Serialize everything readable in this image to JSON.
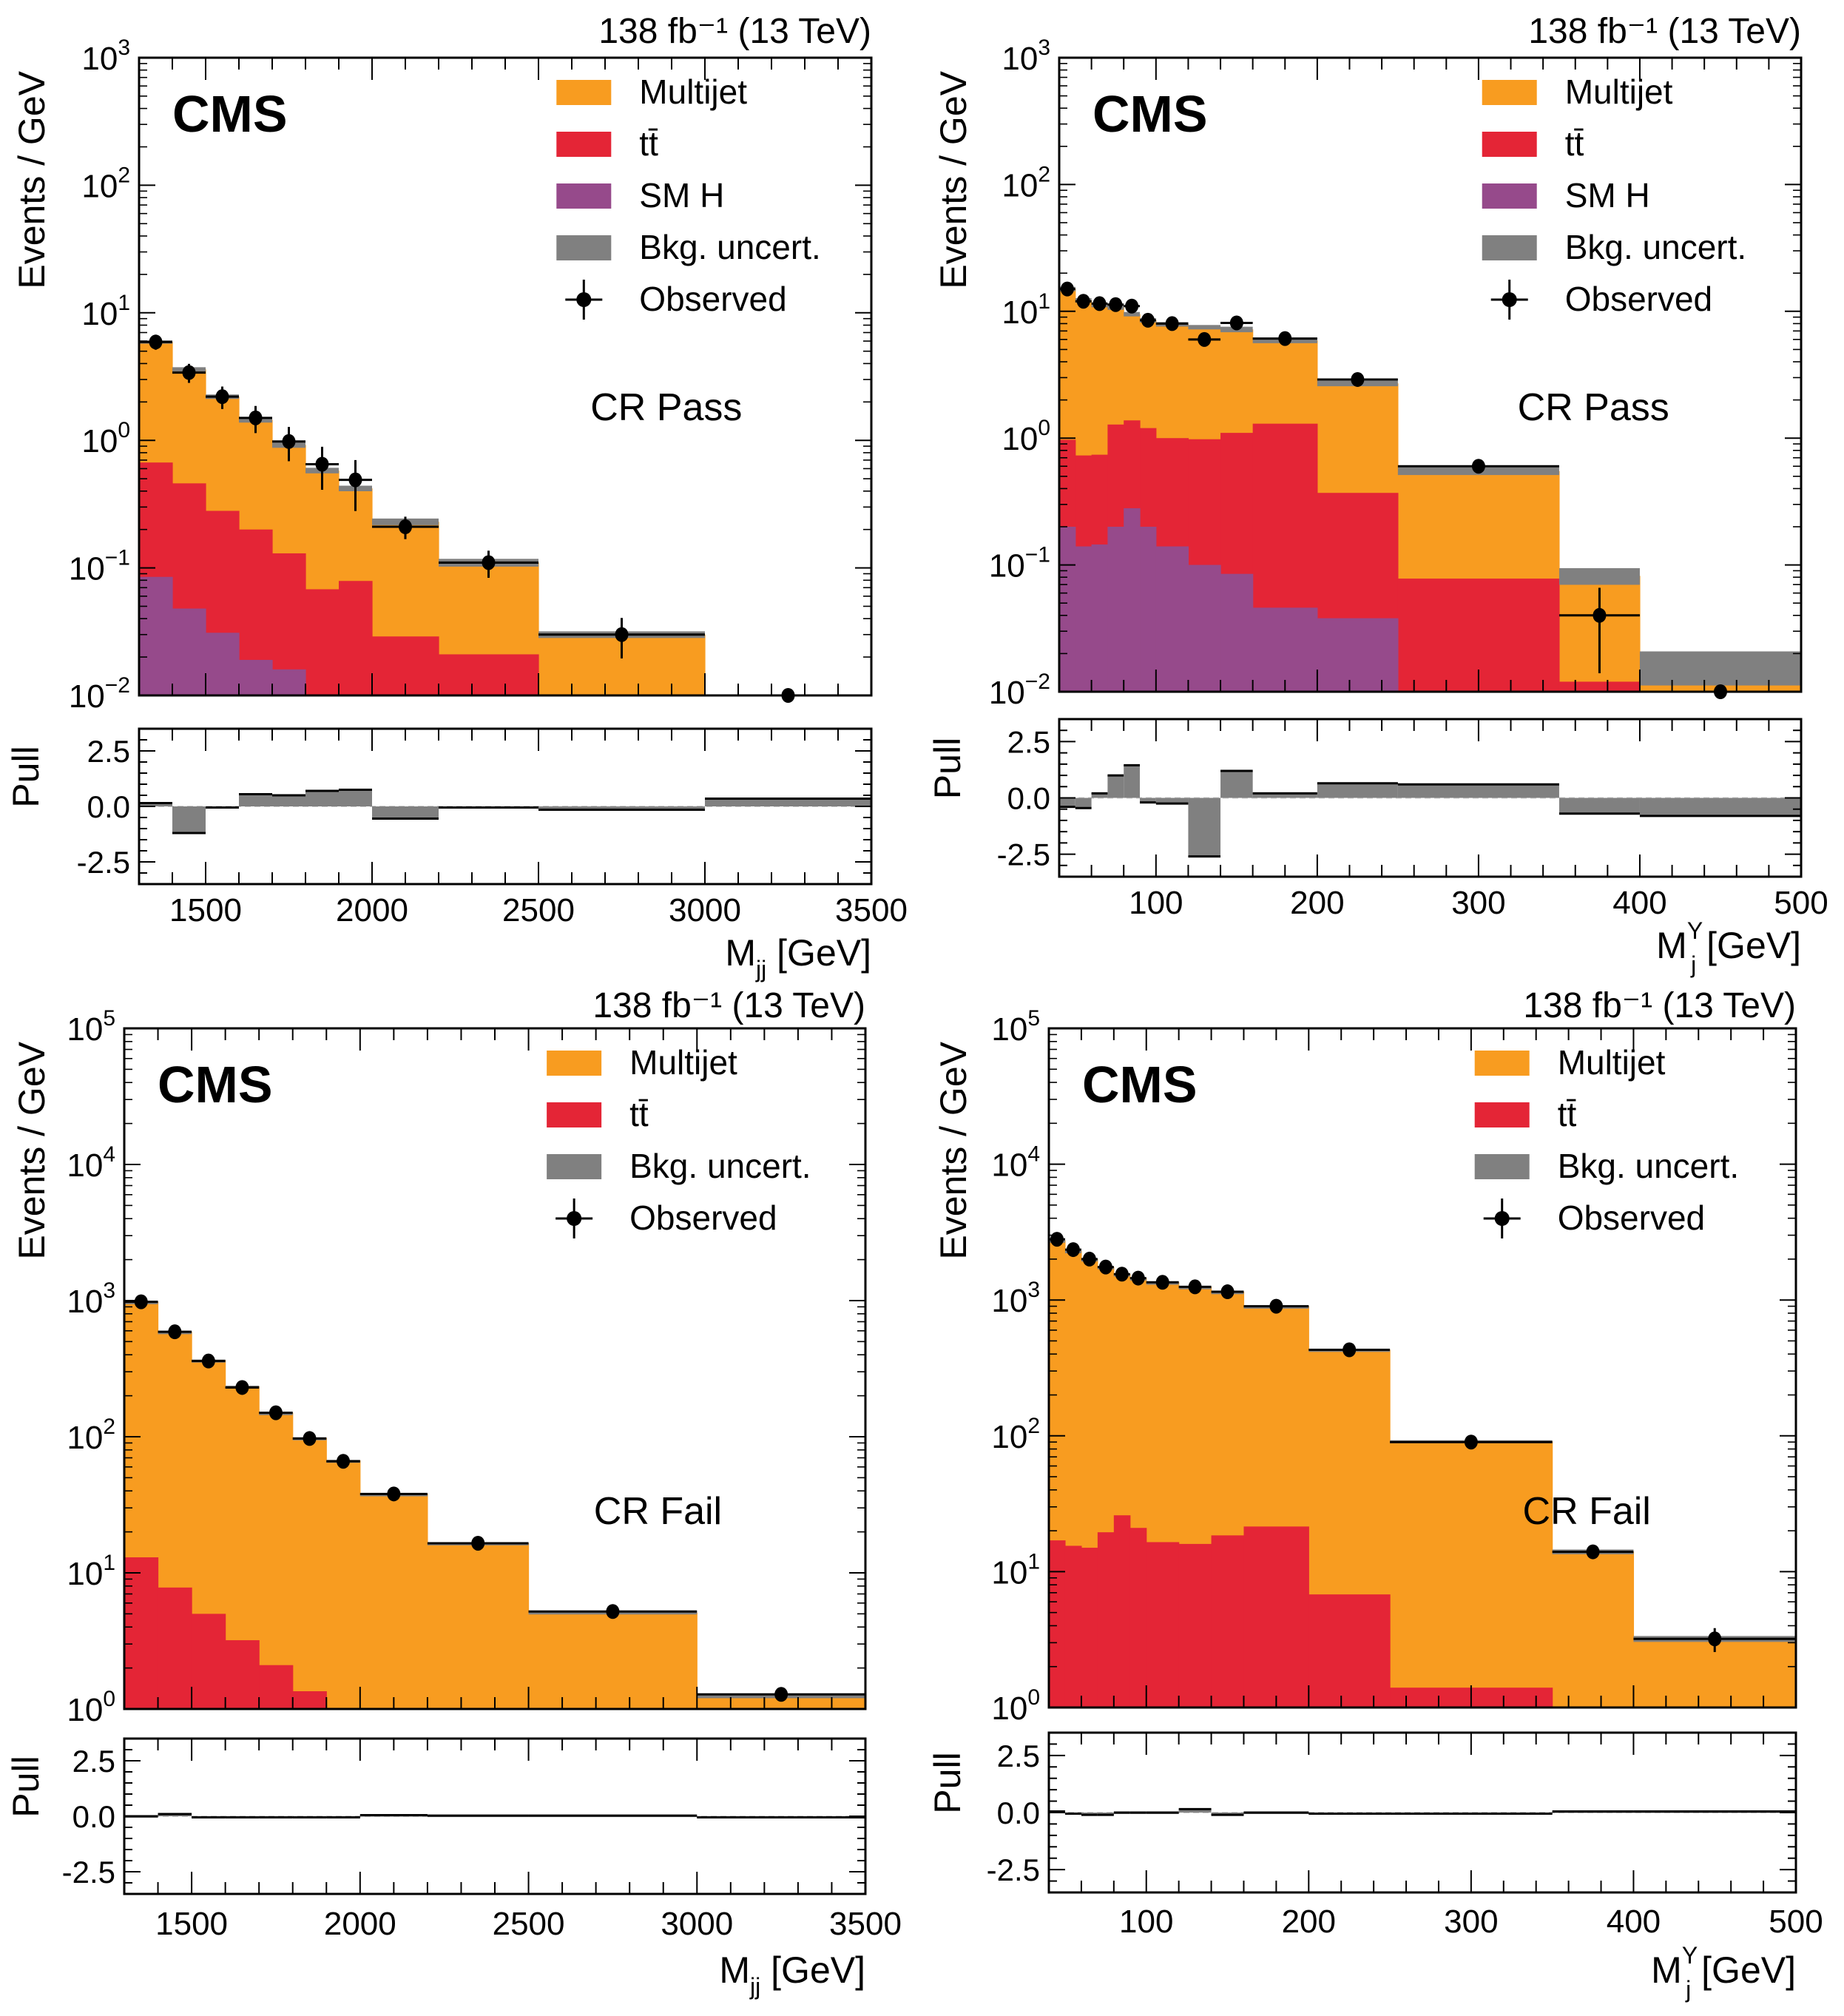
{
  "figure": {
    "colors": {
      "multijet": "#F89C20",
      "ttbar": "#E42536",
      "smh": "#964A8B",
      "uncert": "#808080",
      "observed": "#000000"
    }
  },
  "chart_data": [
    {
      "type": "bar",
      "id": "top-left",
      "title": "",
      "lumi_label": "138 fb⁻¹ (13 TeV)",
      "experiment_label": "CMS",
      "region_label": "CR Pass",
      "xlabel": "M_jj [GeV]",
      "xlabel_main": "M",
      "xlabel_sub": "jj",
      "xlabel_sup": "",
      "xlabel_unit": " [GeV]",
      "ylabel": "Events / GeV",
      "pull_ylabel": "Pull",
      "xlim": [
        1300,
        3500
      ],
      "ylim": [
        0.01,
        1000
      ],
      "yscale": "log",
      "ytick_exponents": [
        -2,
        -1,
        0,
        1,
        2,
        3
      ],
      "xticks": [
        1500,
        2000,
        2500,
        3000,
        3500
      ],
      "pull_ylim": [
        -3.5,
        3.5
      ],
      "pull_yticks": [
        "2.5",
        "0.0",
        "-2.5"
      ],
      "pull_ytick_values": [
        2.5,
        0.0,
        -2.5
      ],
      "legend": [
        "Multijet",
        "tt̄",
        "SM H",
        "Bkg. uncert.",
        "Observed"
      ],
      "legend_keys": [
        "multijet",
        "ttbar",
        "smh",
        "uncert",
        "observed"
      ],
      "legend_placement": "top-right",
      "bin_edges": [
        1300,
        1400,
        1500,
        1600,
        1700,
        1800,
        1900,
        2000,
        2200,
        2500,
        3000,
        3500
      ],
      "series": [
        {
          "name": "SM H",
          "key": "smh",
          "values": [
            0.085,
            0.048,
            0.031,
            0.019,
            0.016,
            0,
            0,
            0,
            0,
            0,
            0
          ]
        },
        {
          "name": "tt̄",
          "key": "ttbar",
          "values": [
            0.67,
            0.46,
            0.28,
            0.2,
            0.13,
            0.068,
            0.079,
            0.029,
            0.021,
            0,
            0
          ]
        },
        {
          "name": "Multijet (total stack)",
          "key": "multijet",
          "values": [
            5.9,
            3.6,
            2.2,
            1.45,
            0.92,
            0.58,
            0.42,
            0.23,
            0.11,
            0.03,
            0
          ]
        },
        {
          "name": "Bkg. uncert. (relative)",
          "key": "uncert",
          "values": [
            0.03,
            0.04,
            0.04,
            0.05,
            0.05,
            0.05,
            0.05,
            0.06,
            0.07,
            0.06,
            0
          ]
        }
      ],
      "observed": {
        "x": [
          1350,
          1450,
          1550,
          1650,
          1750,
          1850,
          1950,
          2100,
          2350,
          2750,
          3250
        ],
        "y": [
          5.9,
          3.4,
          2.2,
          1.5,
          0.98,
          0.65,
          0.49,
          0.21,
          0.11,
          0.03,
          0.01
        ],
        "yerr_rel": [
          0.13,
          0.17,
          0.2,
          0.24,
          0.3,
          0.37,
          0.43,
          0.2,
          0.24,
          0.35,
          0
        ]
      },
      "pull": [
        0.15,
        -1.2,
        -0.05,
        0.55,
        0.5,
        0.7,
        0.75,
        -0.55,
        -0.05,
        -0.15,
        0.35
      ]
    },
    {
      "type": "bar",
      "id": "top-right",
      "title": "",
      "lumi_label": "138 fb⁻¹ (13 TeV)",
      "experiment_label": "CMS",
      "region_label": "CR Pass",
      "xlabel": "M_j^Y [GeV]",
      "xlabel_main": "M",
      "xlabel_sub": "j",
      "xlabel_sup": "Y",
      "xlabel_unit": " [GeV]",
      "ylabel": "Events / GeV",
      "pull_ylabel": "Pull",
      "xlim": [
        40,
        500
      ],
      "ylim": [
        0.01,
        1000
      ],
      "yscale": "log",
      "ytick_exponents": [
        -2,
        -1,
        0,
        1,
        2,
        3
      ],
      "xticks": [
        100,
        200,
        300,
        400,
        500
      ],
      "pull_ylim": [
        -3.5,
        3.5
      ],
      "pull_yticks": [
        "2.5",
        "0.0",
        "-2.5"
      ],
      "pull_ytick_values": [
        2.5,
        0.0,
        -2.5
      ],
      "legend": [
        "Multijet",
        "tt̄",
        "SM H",
        "Bkg. uncert.",
        "Observed"
      ],
      "legend_keys": [
        "multijet",
        "ttbar",
        "smh",
        "uncert",
        "observed"
      ],
      "legend_placement": "top-right",
      "bin_edges": [
        40,
        50,
        60,
        70,
        80,
        90,
        100,
        120,
        140,
        160,
        200,
        250,
        350,
        400,
        500
      ],
      "series": [
        {
          "name": "SM H",
          "key": "smh",
          "values": [
            0.2,
            0.14,
            0.145,
            0.2,
            0.28,
            0.2,
            0.14,
            0.1,
            0.085,
            0.046,
            0.038,
            0,
            0,
            0
          ]
        },
        {
          "name": "tt̄",
          "key": "ttbar",
          "values": [
            0.97,
            0.73,
            0.74,
            1.28,
            1.38,
            1.2,
            1.0,
            0.98,
            1.1,
            1.3,
            0.37,
            0.078,
            0.012,
            0
          ]
        },
        {
          "name": "Multijet (total stack)",
          "key": "multijet",
          "values": [
            15.0,
            12.2,
            11.2,
            10.7,
            9.5,
            8.5,
            7.9,
            7.5,
            7.2,
            5.9,
            2.7,
            0.55,
            0.082,
            0.016
          ]
        },
        {
          "name": "Bkg. uncert. (relative)",
          "key": "uncert",
          "values": [
            0.04,
            0.04,
            0.04,
            0.04,
            0.04,
            0.04,
            0.04,
            0.04,
            0.05,
            0.05,
            0.05,
            0.07,
            0.15,
            0.3
          ]
        }
      ],
      "observed": {
        "x": [
          45,
          55,
          65,
          75,
          85,
          95,
          110,
          130,
          150,
          180,
          225,
          300,
          375,
          450
        ],
        "y": [
          15.0,
          12.0,
          11.5,
          11.3,
          11.0,
          8.5,
          8.0,
          6.0,
          8.1,
          6.1,
          2.9,
          0.6,
          0.04,
          0.01
        ],
        "yerr_rel": [
          0.08,
          0.09,
          0.09,
          0.09,
          0.09,
          0.1,
          0.08,
          0.09,
          0.08,
          0.07,
          0.08,
          0.12,
          0.65,
          0
        ]
      },
      "pull": [
        -0.4,
        -0.45,
        0.2,
        1.0,
        1.45,
        -0.2,
        -0.25,
        -2.6,
        1.2,
        0.2,
        0.65,
        0.6,
        -0.7,
        -0.8
      ]
    },
    {
      "type": "bar",
      "id": "bottom-left",
      "title": "",
      "lumi_label": "138 fb⁻¹ (13 TeV)",
      "experiment_label": "CMS",
      "region_label": "CR Fail",
      "xlabel": "M_jj [GeV]",
      "xlabel_main": "M",
      "xlabel_sub": "jj",
      "xlabel_sup": "",
      "xlabel_unit": " [GeV]",
      "ylabel": "Events / GeV",
      "pull_ylabel": "Pull",
      "xlim": [
        1300,
        3500
      ],
      "ylim": [
        1,
        100000
      ],
      "yscale": "log",
      "ytick_exponents": [
        0,
        1,
        2,
        3,
        4,
        5
      ],
      "xticks": [
        1500,
        2000,
        2500,
        3000,
        3500
      ],
      "pull_ylim": [
        -3.5,
        3.5
      ],
      "pull_yticks": [
        "2.5",
        "0.0",
        "-2.5"
      ],
      "pull_ytick_values": [
        2.5,
        0.0,
        -2.5
      ],
      "legend": [
        "Multijet",
        "tt̄",
        "Bkg. uncert.",
        "Observed"
      ],
      "legend_keys": [
        "multijet",
        "ttbar",
        "uncert",
        "observed"
      ],
      "legend_placement": "top-right",
      "bin_edges": [
        1300,
        1400,
        1500,
        1600,
        1700,
        1800,
        1900,
        2000,
        2200,
        2500,
        3000,
        3500
      ],
      "series": [
        {
          "name": "tt̄",
          "key": "ttbar",
          "values": [
            13,
            7.8,
            5.0,
            3.2,
            2.1,
            1.35,
            0,
            0,
            0,
            0,
            0
          ]
        },
        {
          "name": "Multijet (total stack)",
          "key": "multijet",
          "values": [
            980,
            590,
            365,
            235,
            150,
            98,
            67,
            38,
            16.5,
            5.1,
            1.25
          ]
        },
        {
          "name": "Bkg. uncert. (relative)",
          "key": "uncert",
          "values": [
            0.01,
            0.01,
            0.01,
            0.01,
            0.01,
            0.01,
            0.01,
            0.01,
            0.015,
            0.02,
            0.04
          ]
        }
      ],
      "observed": {
        "x": [
          1350,
          1450,
          1550,
          1650,
          1750,
          1850,
          1950,
          2100,
          2350,
          2750,
          3250
        ],
        "y": [
          980,
          590,
          360,
          230,
          150,
          97,
          66,
          38,
          16.5,
          5.2,
          1.28
        ],
        "yerr_rel": [
          0.01,
          0.01,
          0.01,
          0.01,
          0.01,
          0.01,
          0.02,
          0.02,
          0.02,
          0.04,
          0.08
        ]
      },
      "pull": [
        0.0,
        0.1,
        -0.05,
        -0.05,
        -0.05,
        -0.05,
        -0.05,
        0.05,
        0.03,
        0.03,
        -0.05
      ]
    },
    {
      "type": "bar",
      "id": "bottom-right",
      "title": "",
      "lumi_label": "138 fb⁻¹ (13 TeV)",
      "experiment_label": "CMS",
      "region_label": "CR Fail",
      "xlabel": "M_j^Y [GeV]",
      "xlabel_main": "M",
      "xlabel_sub": "j",
      "xlabel_sup": "Y",
      "xlabel_unit": " [GeV]",
      "ylabel": "Events / GeV",
      "pull_ylabel": "Pull",
      "xlim": [
        40,
        500
      ],
      "ylim": [
        1,
        100000
      ],
      "yscale": "log",
      "ytick_exponents": [
        0,
        1,
        2,
        3,
        4,
        5
      ],
      "xticks": [
        100,
        200,
        300,
        400,
        500
      ],
      "pull_ylim": [
        -3.5,
        3.5
      ],
      "pull_yticks": [
        "2.5",
        "0.0",
        "-2.5"
      ],
      "pull_ytick_values": [
        2.5,
        0.0,
        -2.5
      ],
      "legend": [
        "Multijet",
        "tt̄",
        "Bkg. uncert.",
        "Observed"
      ],
      "legend_keys": [
        "multijet",
        "ttbar",
        "uncert",
        "observed"
      ],
      "legend_placement": "top-right",
      "bin_edges": [
        40,
        50,
        60,
        70,
        80,
        90,
        100,
        120,
        140,
        160,
        200,
        250,
        350,
        400,
        500
      ],
      "series": [
        {
          "name": "tt̄",
          "key": "ttbar",
          "values": [
            17,
            15.5,
            15,
            19.5,
            26,
            21,
            16.5,
            16,
            18.5,
            21.5,
            6.8,
            1.4,
            0,
            0
          ]
        },
        {
          "name": "Multijet (total stack)",
          "key": "multijet",
          "values": [
            2750,
            2300,
            2000,
            1750,
            1550,
            1450,
            1350,
            1250,
            1150,
            900,
            430,
            91,
            14,
            3.2
          ]
        },
        {
          "name": "Bkg. uncert. (relative)",
          "key": "uncert",
          "values": [
            0.01,
            0.01,
            0.01,
            0.01,
            0.01,
            0.01,
            0.01,
            0.01,
            0.01,
            0.01,
            0.015,
            0.02,
            0.04,
            0.05
          ]
        }
      ],
      "observed": {
        "x": [
          45,
          55,
          65,
          75,
          85,
          95,
          110,
          130,
          150,
          180,
          225,
          300,
          375,
          450
        ],
        "y": [
          2800,
          2350,
          2000,
          1750,
          1550,
          1450,
          1350,
          1250,
          1150,
          900,
          430,
          90,
          14,
          3.2
        ],
        "yerr_rel": [
          0.01,
          0.01,
          0.01,
          0.01,
          0.01,
          0.01,
          0.01,
          0.01,
          0.01,
          0.01,
          0.02,
          0.04,
          0.1,
          0.2
        ]
      },
      "pull": [
        0.05,
        -0.05,
        -0.1,
        -0.1,
        0.0,
        0.0,
        0.0,
        0.15,
        -0.1,
        0.0,
        -0.05,
        -0.05,
        0.05,
        0.05
      ]
    }
  ]
}
